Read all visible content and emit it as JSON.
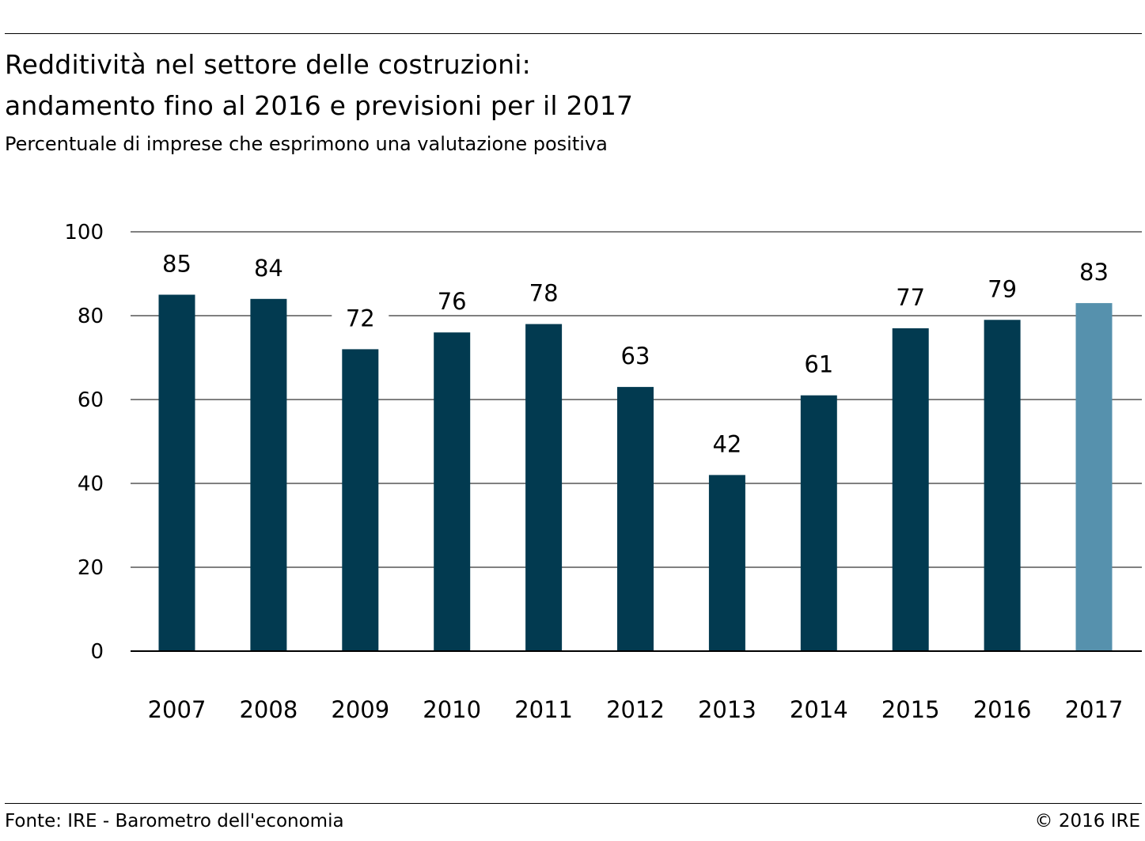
{
  "header": {
    "title_line_1": "Redditività nel settore delle costruzioni:",
    "title_line_2": "andamento fino al 2016 e previsioni per il 2017",
    "subtitle": "Percentuale di imprese che esprimono una valutazione positiva"
  },
  "footer": {
    "source": "Fonte: IRE - Barometro dell'economia",
    "copyright": "© 2016 IRE"
  },
  "colors": {
    "bar": "#023a50",
    "bar_forecast": "#5691ad",
    "grid": "#000000"
  },
  "chart_data": {
    "type": "bar",
    "title": "Redditività nel settore delle costruzioni: andamento fino al 2016 e previsioni per il 2017",
    "subtitle": "Percentuale di imprese che esprimono una valutazione positiva",
    "xlabel": "",
    "ylabel": "",
    "categories": [
      "2007",
      "2008",
      "2009",
      "2010",
      "2011",
      "2012",
      "2013",
      "2014",
      "2015",
      "2016",
      "2017"
    ],
    "values": [
      85,
      84,
      72,
      76,
      78,
      63,
      42,
      61,
      77,
      79,
      83
    ],
    "value_labels": [
      "85",
      "84",
      "72",
      "76",
      "78",
      "63",
      "42",
      "61",
      "77",
      "79",
      "83"
    ],
    "forecast_categories": [
      "2017"
    ],
    "ylim": [
      0,
      100
    ],
    "yticks": [
      0,
      20,
      40,
      60,
      80,
      100
    ],
    "ytick_labels": [
      "0",
      "20",
      "40",
      "60",
      "80",
      "100"
    ],
    "grid": true,
    "legend": "none"
  }
}
